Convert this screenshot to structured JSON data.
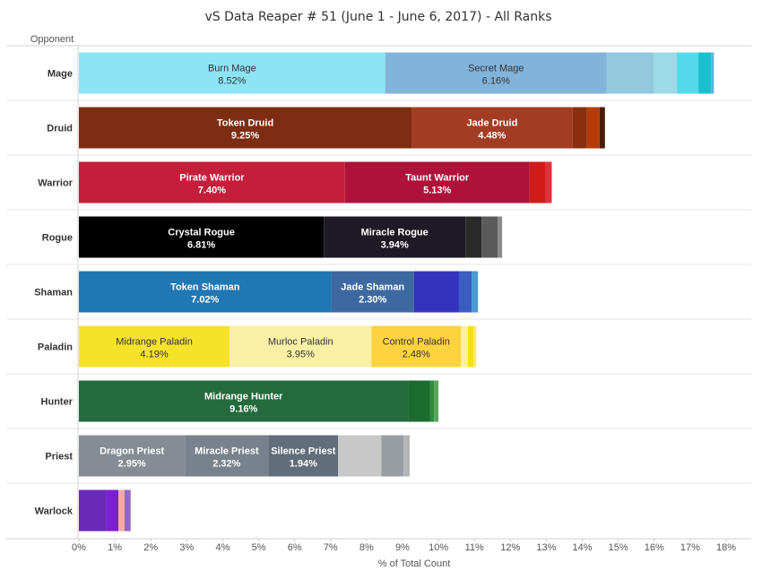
{
  "chart_data": {
    "type": "bar",
    "orientation": "horizontal",
    "stacked": true,
    "title": "vS Data Reaper # 51 (June 1 - June 6, 2017) - All Ranks",
    "ylabel": "Opponent",
    "xlabel": "% of Total Count",
    "xlim": [
      0,
      18
    ],
    "x_ticks": [
      "0%",
      "1%",
      "2%",
      "3%",
      "4%",
      "5%",
      "6%",
      "7%",
      "8%",
      "9%",
      "10%",
      "11%",
      "12%",
      "13%",
      "14%",
      "15%",
      "16%",
      "17%",
      "18%"
    ],
    "grid": false,
    "categories": [
      "Mage",
      "Druid",
      "Warrior",
      "Rogue",
      "Shaman",
      "Paladin",
      "Hunter",
      "Priest",
      "Warlock"
    ],
    "rows": [
      {
        "category": "Mage",
        "segments": [
          {
            "name": "Burn Mage",
            "value": 8.52,
            "label": "8.52%",
            "color": "#8ce4f5",
            "text_color": "#333333"
          },
          {
            "name": "Secret Mage",
            "value": 6.16,
            "label": "6.16%",
            "color": "#82b3db",
            "text_color": "#333333"
          },
          {
            "value": 1.3,
            "color": "#92c9dd"
          },
          {
            "value": 0.65,
            "color": "#9ed9e8"
          },
          {
            "value": 0.6,
            "color": "#54d9ea"
          },
          {
            "value": 0.35,
            "color": "#1cbfcf"
          },
          {
            "value": 0.08,
            "color": "#5fb0e0"
          }
        ]
      },
      {
        "category": "Druid",
        "segments": [
          {
            "name": "Token Druid",
            "value": 9.25,
            "label": "9.25%",
            "color": "#7e2d12",
            "text_color": "#ffffff"
          },
          {
            "name": "Jade Druid",
            "value": 4.48,
            "label": "4.48%",
            "color": "#a23c23",
            "text_color": "#ffffff"
          },
          {
            "value": 0.4,
            "color": "#8a2e10"
          },
          {
            "value": 0.35,
            "color": "#b83a08"
          },
          {
            "value": 0.15,
            "color": "#4a1d0a"
          }
        ]
      },
      {
        "category": "Warrior",
        "segments": [
          {
            "name": "Pirate Warrior",
            "value": 7.4,
            "label": "7.40%",
            "color": "#c41e3a",
            "text_color": "#ffffff"
          },
          {
            "name": "Taunt Warrior",
            "value": 5.13,
            "label": "5.13%",
            "color": "#ae123a",
            "text_color": "#ffffff"
          },
          {
            "value": 0.45,
            "color": "#d01a1a"
          },
          {
            "value": 0.17,
            "color": "#e0303c"
          }
        ]
      },
      {
        "category": "Rogue",
        "segments": [
          {
            "name": "Crystal Rogue",
            "value": 6.81,
            "label": "6.81%",
            "color": "#000000",
            "text_color": "#ffffff"
          },
          {
            "name": "Miracle Rogue",
            "value": 3.94,
            "label": "3.94%",
            "color": "#1e1a26",
            "text_color": "#ffffff"
          },
          {
            "value": 0.45,
            "color": "#2a2a2a"
          },
          {
            "value": 0.45,
            "color": "#5a5a5a"
          },
          {
            "value": 0.12,
            "color": "#8a8a8a"
          }
        ]
      },
      {
        "category": "Shaman",
        "segments": [
          {
            "name": "Token Shaman",
            "value": 7.02,
            "label": "7.02%",
            "color": "#1f77b4",
            "text_color": "#ffffff"
          },
          {
            "name": "Jade Shaman",
            "value": 2.3,
            "label": "2.30%",
            "color": "#3c6aa0",
            "text_color": "#ffffff"
          },
          {
            "value": 1.25,
            "color": "#3333c0"
          },
          {
            "value": 0.35,
            "color": "#3a5ec0"
          },
          {
            "value": 0.18,
            "color": "#4a9ad6"
          }
        ]
      },
      {
        "category": "Paladin",
        "segments": [
          {
            "name": "Midrange Paladin",
            "value": 4.19,
            "label": "4.19%",
            "color": "#f5e22a",
            "text_color": "#333333"
          },
          {
            "name": "Murloc Paladin",
            "value": 3.95,
            "label": "3.95%",
            "color": "#f9f0a6",
            "text_color": "#333333"
          },
          {
            "name": "Control Paladin",
            "value": 2.48,
            "label": "2.48%",
            "color": "#fdd340",
            "text_color": "#333333"
          },
          {
            "value": 0.2,
            "color": "#fbf0a0"
          },
          {
            "value": 0.15,
            "color": "#f5e020"
          },
          {
            "value": 0.08,
            "color": "#fbe870"
          }
        ]
      },
      {
        "category": "Hunter",
        "segments": [
          {
            "name": "Midrange Hunter",
            "value": 9.16,
            "label": "9.16%",
            "color": "#236b3c",
            "text_color": "#ffffff"
          },
          {
            "value": 0.6,
            "color": "#1c6b30"
          },
          {
            "value": 0.12,
            "color": "#2e8b3e"
          },
          {
            "value": 0.12,
            "color": "#5aa55a"
          }
        ]
      },
      {
        "category": "Priest",
        "segments": [
          {
            "name": "Dragon Priest",
            "value": 2.95,
            "label": "2.95%",
            "color": "#858c93",
            "text_color": "#ffffff"
          },
          {
            "name": "Miracle Priest",
            "value": 2.32,
            "label": "2.32%",
            "color": "#78828c",
            "text_color": "#ffffff"
          },
          {
            "name": "Silence Priest",
            "value": 1.94,
            "label": "1.94%",
            "color": "#616d79",
            "text_color": "#ffffff"
          },
          {
            "value": 1.2,
            "color": "#c8c8c8"
          },
          {
            "value": 0.62,
            "color": "#979da2"
          },
          {
            "value": 0.17,
            "color": "#b4b4b4"
          }
        ]
      },
      {
        "category": "Warlock",
        "segments": [
          {
            "value": 0.75,
            "color": "#6a2ab8"
          },
          {
            "value": 0.35,
            "color": "#7a1fd6"
          },
          {
            "value": 0.17,
            "color": "#f5a9a0"
          },
          {
            "value": 0.17,
            "color": "#9068c0"
          }
        ]
      }
    ]
  }
}
